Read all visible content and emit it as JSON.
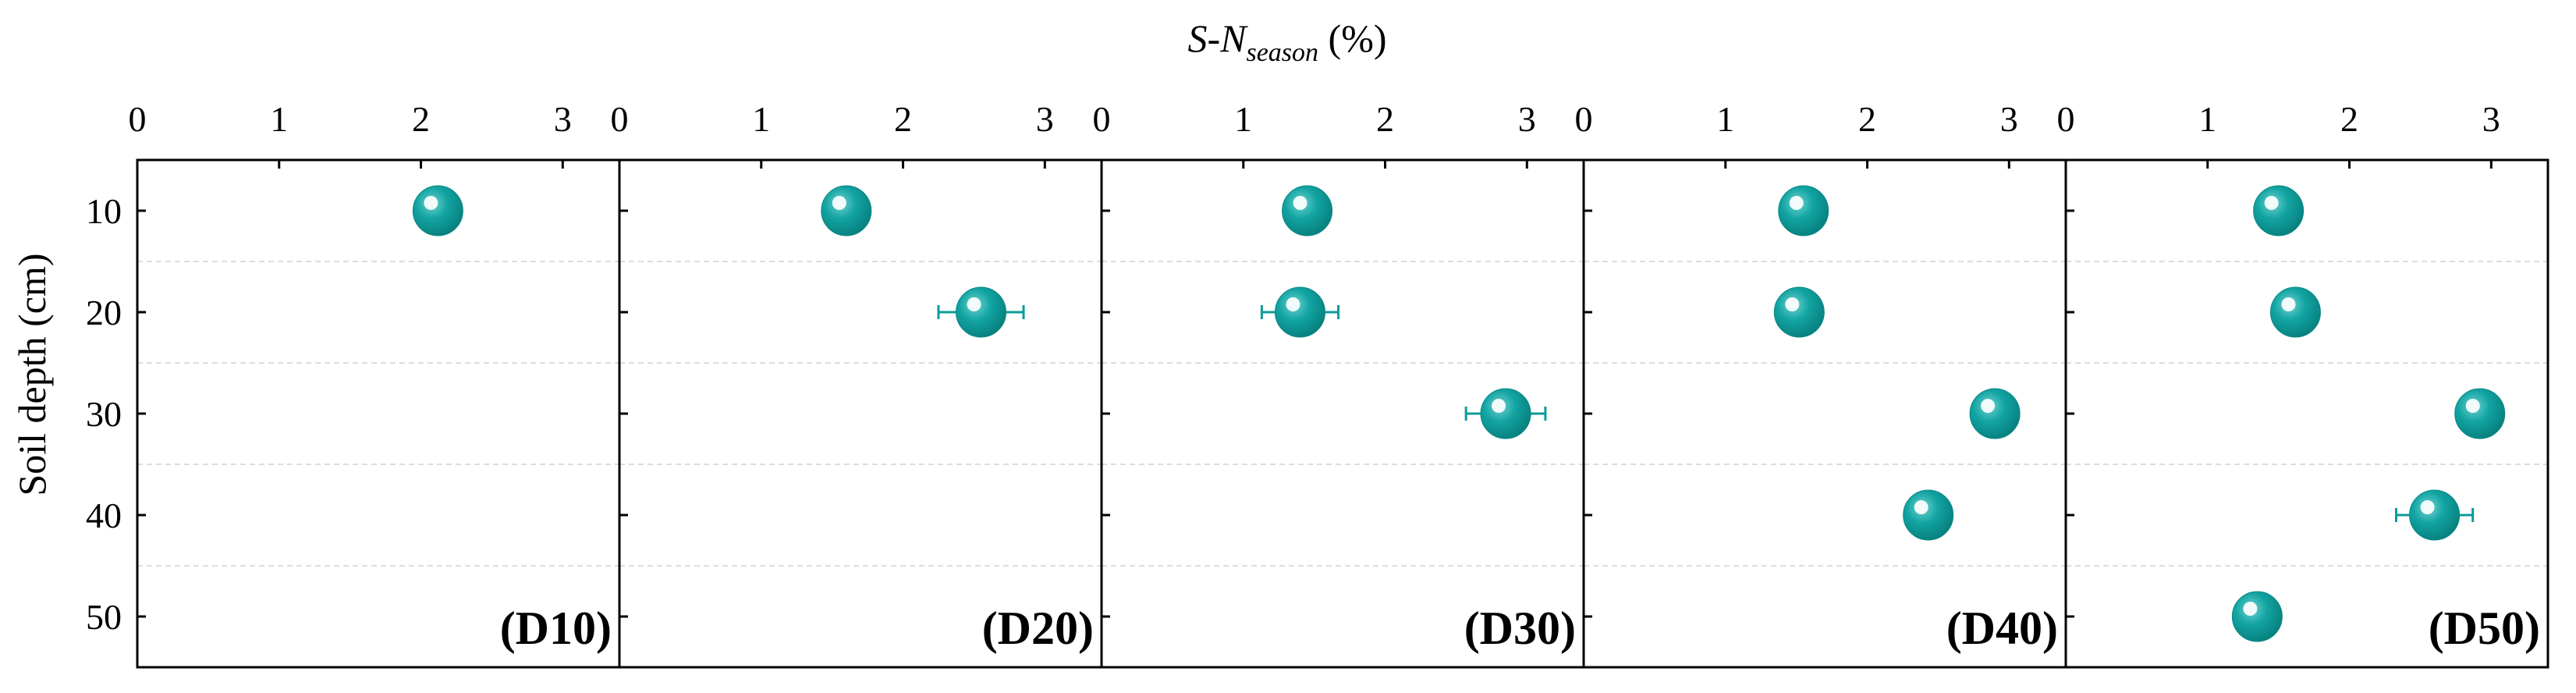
{
  "chart_data": {
    "type": "scatter",
    "xlabel": {
      "main": "S-N",
      "sub": "season",
      "unit": " (%)"
    },
    "ylabel": "Soil depth (cm)",
    "xlim": [
      0,
      3.4
    ],
    "ylim": [
      5,
      55
    ],
    "x_ticks": [
      0,
      1,
      2,
      3
    ],
    "y_ticks": [
      10,
      20,
      30,
      40,
      50
    ],
    "y_minor_grid": [
      15,
      25,
      35,
      45
    ],
    "grid": "dashed horizontal minor",
    "marker_color": "#0B9C9A",
    "errorbar_color": "#0B9C9A",
    "panels": [
      {
        "label": "(D10)",
        "points": [
          {
            "depth": 10,
            "value": 2.12,
            "err": 0.05
          }
        ]
      },
      {
        "label": "(D20)",
        "points": [
          {
            "depth": 10,
            "value": 1.6,
            "err": 0.04
          },
          {
            "depth": 20,
            "value": 2.55,
            "err": 0.3
          }
        ]
      },
      {
        "label": "(D30)",
        "points": [
          {
            "depth": 10,
            "value": 1.45,
            "err": 0.05
          },
          {
            "depth": 20,
            "value": 1.4,
            "err": 0.27
          },
          {
            "depth": 30,
            "value": 2.85,
            "err": 0.28
          }
        ]
      },
      {
        "label": "(D40)",
        "points": [
          {
            "depth": 10,
            "value": 1.55,
            "err": 0.04
          },
          {
            "depth": 20,
            "value": 1.52,
            "err": 0.07
          },
          {
            "depth": 30,
            "value": 2.9,
            "err": 0.07
          },
          {
            "depth": 40,
            "value": 2.43,
            "err": 0.08
          }
        ]
      },
      {
        "label": "(D50)",
        "points": [
          {
            "depth": 10,
            "value": 1.5,
            "err": 0.05
          },
          {
            "depth": 20,
            "value": 1.62,
            "err": 0.05
          },
          {
            "depth": 30,
            "value": 2.92,
            "err": 0.08
          },
          {
            "depth": 40,
            "value": 2.6,
            "err": 0.27
          },
          {
            "depth": 50,
            "value": 1.35,
            "err": 0.03
          }
        ]
      }
    ]
  }
}
